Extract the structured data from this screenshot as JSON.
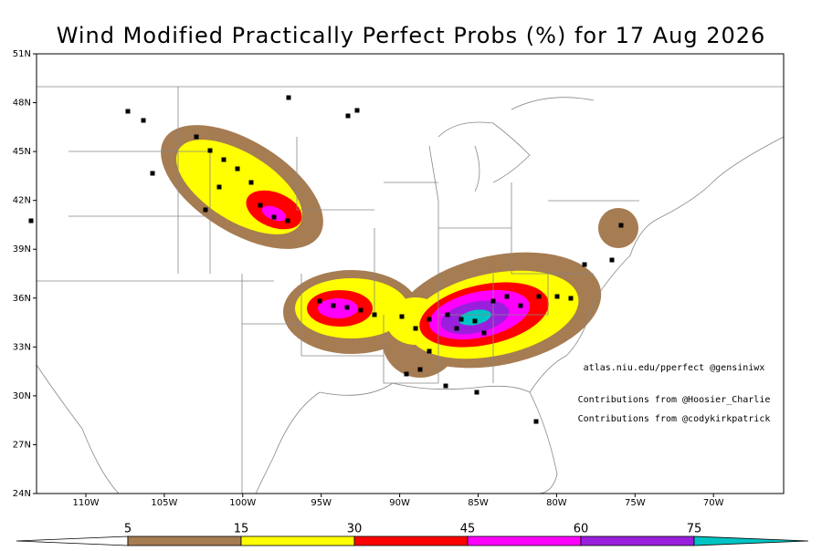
{
  "title": "Wind Modified Practically Perfect Probs (%) for 17 Aug 2026",
  "lat_labels": [
    "51N",
    "48N",
    "45N",
    "42N",
    "39N",
    "36N",
    "33N",
    "30N",
    "27N",
    "24N"
  ],
  "lon_labels": [
    "110W",
    "105W",
    "100W",
    "95W",
    "90W",
    "85W",
    "80W",
    "75W",
    "70W"
  ],
  "credits": [
    "atlas.niu.edu/pperfect @gensiniwx",
    "Contributions from @Hoosier_Charlie",
    "Contributions from @codykirkpatrick"
  ],
  "colorbar": {
    "labels": [
      5,
      15,
      30,
      45,
      60,
      75
    ],
    "colors": [
      "#ffffff",
      "#a67c52",
      "#ffff00",
      "#ff0000",
      "#ff00ff",
      "#9a1fdc",
      "#00c4c4"
    ]
  }
}
